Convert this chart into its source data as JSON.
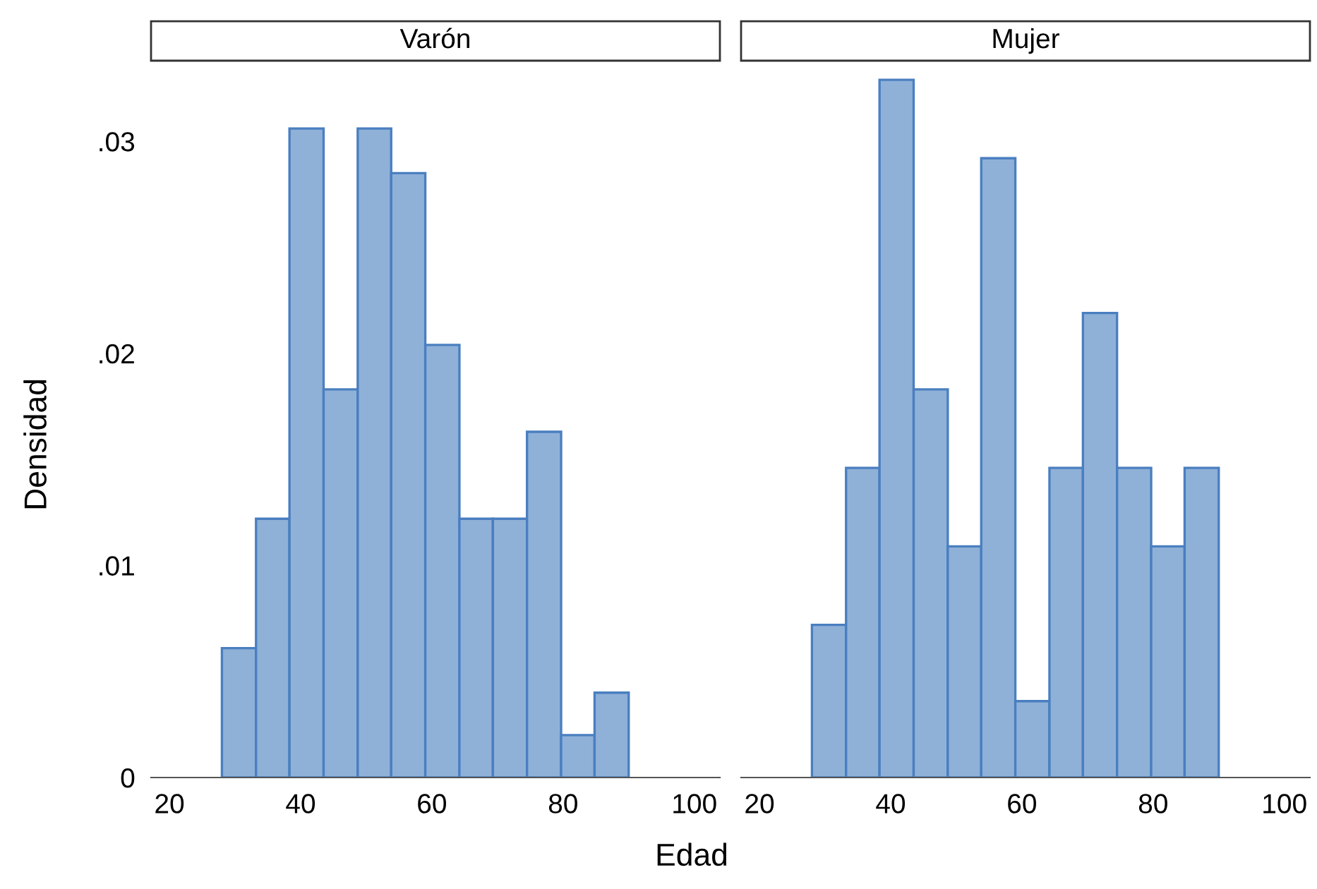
{
  "chart_data": [
    {
      "type": "histogram",
      "title": "Varón",
      "xlabel": "Edad",
      "ylabel": "Densidad",
      "color": "#8fb1d8",
      "bins": [
        28,
        33.2,
        38.3,
        43.5,
        48.7,
        53.8,
        59,
        64.2,
        69.3,
        74.5,
        79.7,
        84.8,
        90
      ],
      "values": [
        0.0061,
        0.0122,
        0.0306,
        0.0183,
        0.0306,
        0.0285,
        0.0204,
        0.0122,
        0.0122,
        0.0163,
        0.002,
        0.004
      ],
      "xlim": [
        17.2,
        103.9
      ],
      "xticks": [
        20,
        40,
        60,
        80,
        100
      ],
      "ylim": [
        0,
        0.0338
      ],
      "yticks": [
        {
          "value": 0,
          "label": "0"
        },
        {
          "value": 0.01,
          "label": ".01"
        },
        {
          "value": 0.02,
          "label": ".02"
        },
        {
          "value": 0.03,
          "label": ".03"
        }
      ],
      "grid": false
    },
    {
      "type": "histogram",
      "title": "Mujer",
      "color": "#8fb1d8",
      "bins": [
        28,
        33.2,
        38.3,
        43.5,
        48.7,
        53.8,
        59,
        64.2,
        69.3,
        74.5,
        79.7,
        84.8,
        90
      ],
      "values": [
        0.0072,
        0.0146,
        0.0329,
        0.0183,
        0.0109,
        0.0292,
        0.0036,
        0.0146,
        0.0219,
        0.0146,
        0.0109,
        0.0146
      ],
      "xlim": [
        17.2,
        103.9
      ],
      "xticks": [
        20,
        40,
        60,
        80,
        100
      ],
      "ylim": [
        0,
        0.0338
      ],
      "tick_labels": "x",
      "grid": false
    }
  ]
}
